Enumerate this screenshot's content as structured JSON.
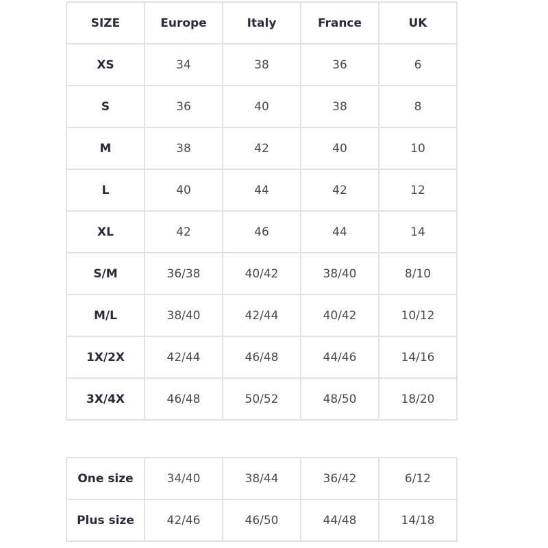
{
  "table": {
    "headers": [
      "SIZE",
      "Europe",
      "Italy",
      "France",
      "UK"
    ],
    "rows": [
      [
        "XS",
        "34",
        "38",
        "36",
        "6"
      ],
      [
        "S",
        "36",
        "40",
        "38",
        "8"
      ],
      [
        "M",
        "38",
        "42",
        "40",
        "10"
      ],
      [
        "L",
        "40",
        "44",
        "42",
        "12"
      ],
      [
        "XL",
        "42",
        "46",
        "44",
        "14"
      ],
      [
        "S/M",
        "36/38",
        "40/42",
        "38/40",
        "8/10"
      ],
      [
        "M/L",
        "38/40",
        "42/44",
        "40/42",
        "10/12"
      ],
      [
        "1X/2X",
        "42/44",
        "46/48",
        "44/46",
        "14/16"
      ],
      [
        "3X/4X",
        "46/48",
        "50/52",
        "48/50",
        "18/20"
      ]
    ]
  },
  "table2": {
    "rows": [
      [
        "One size",
        "34/40",
        "38/44",
        "36/42",
        "6/12"
      ],
      [
        "Plus size",
        "42/46",
        "46/50",
        "44/48",
        "14/18"
      ]
    ]
  }
}
